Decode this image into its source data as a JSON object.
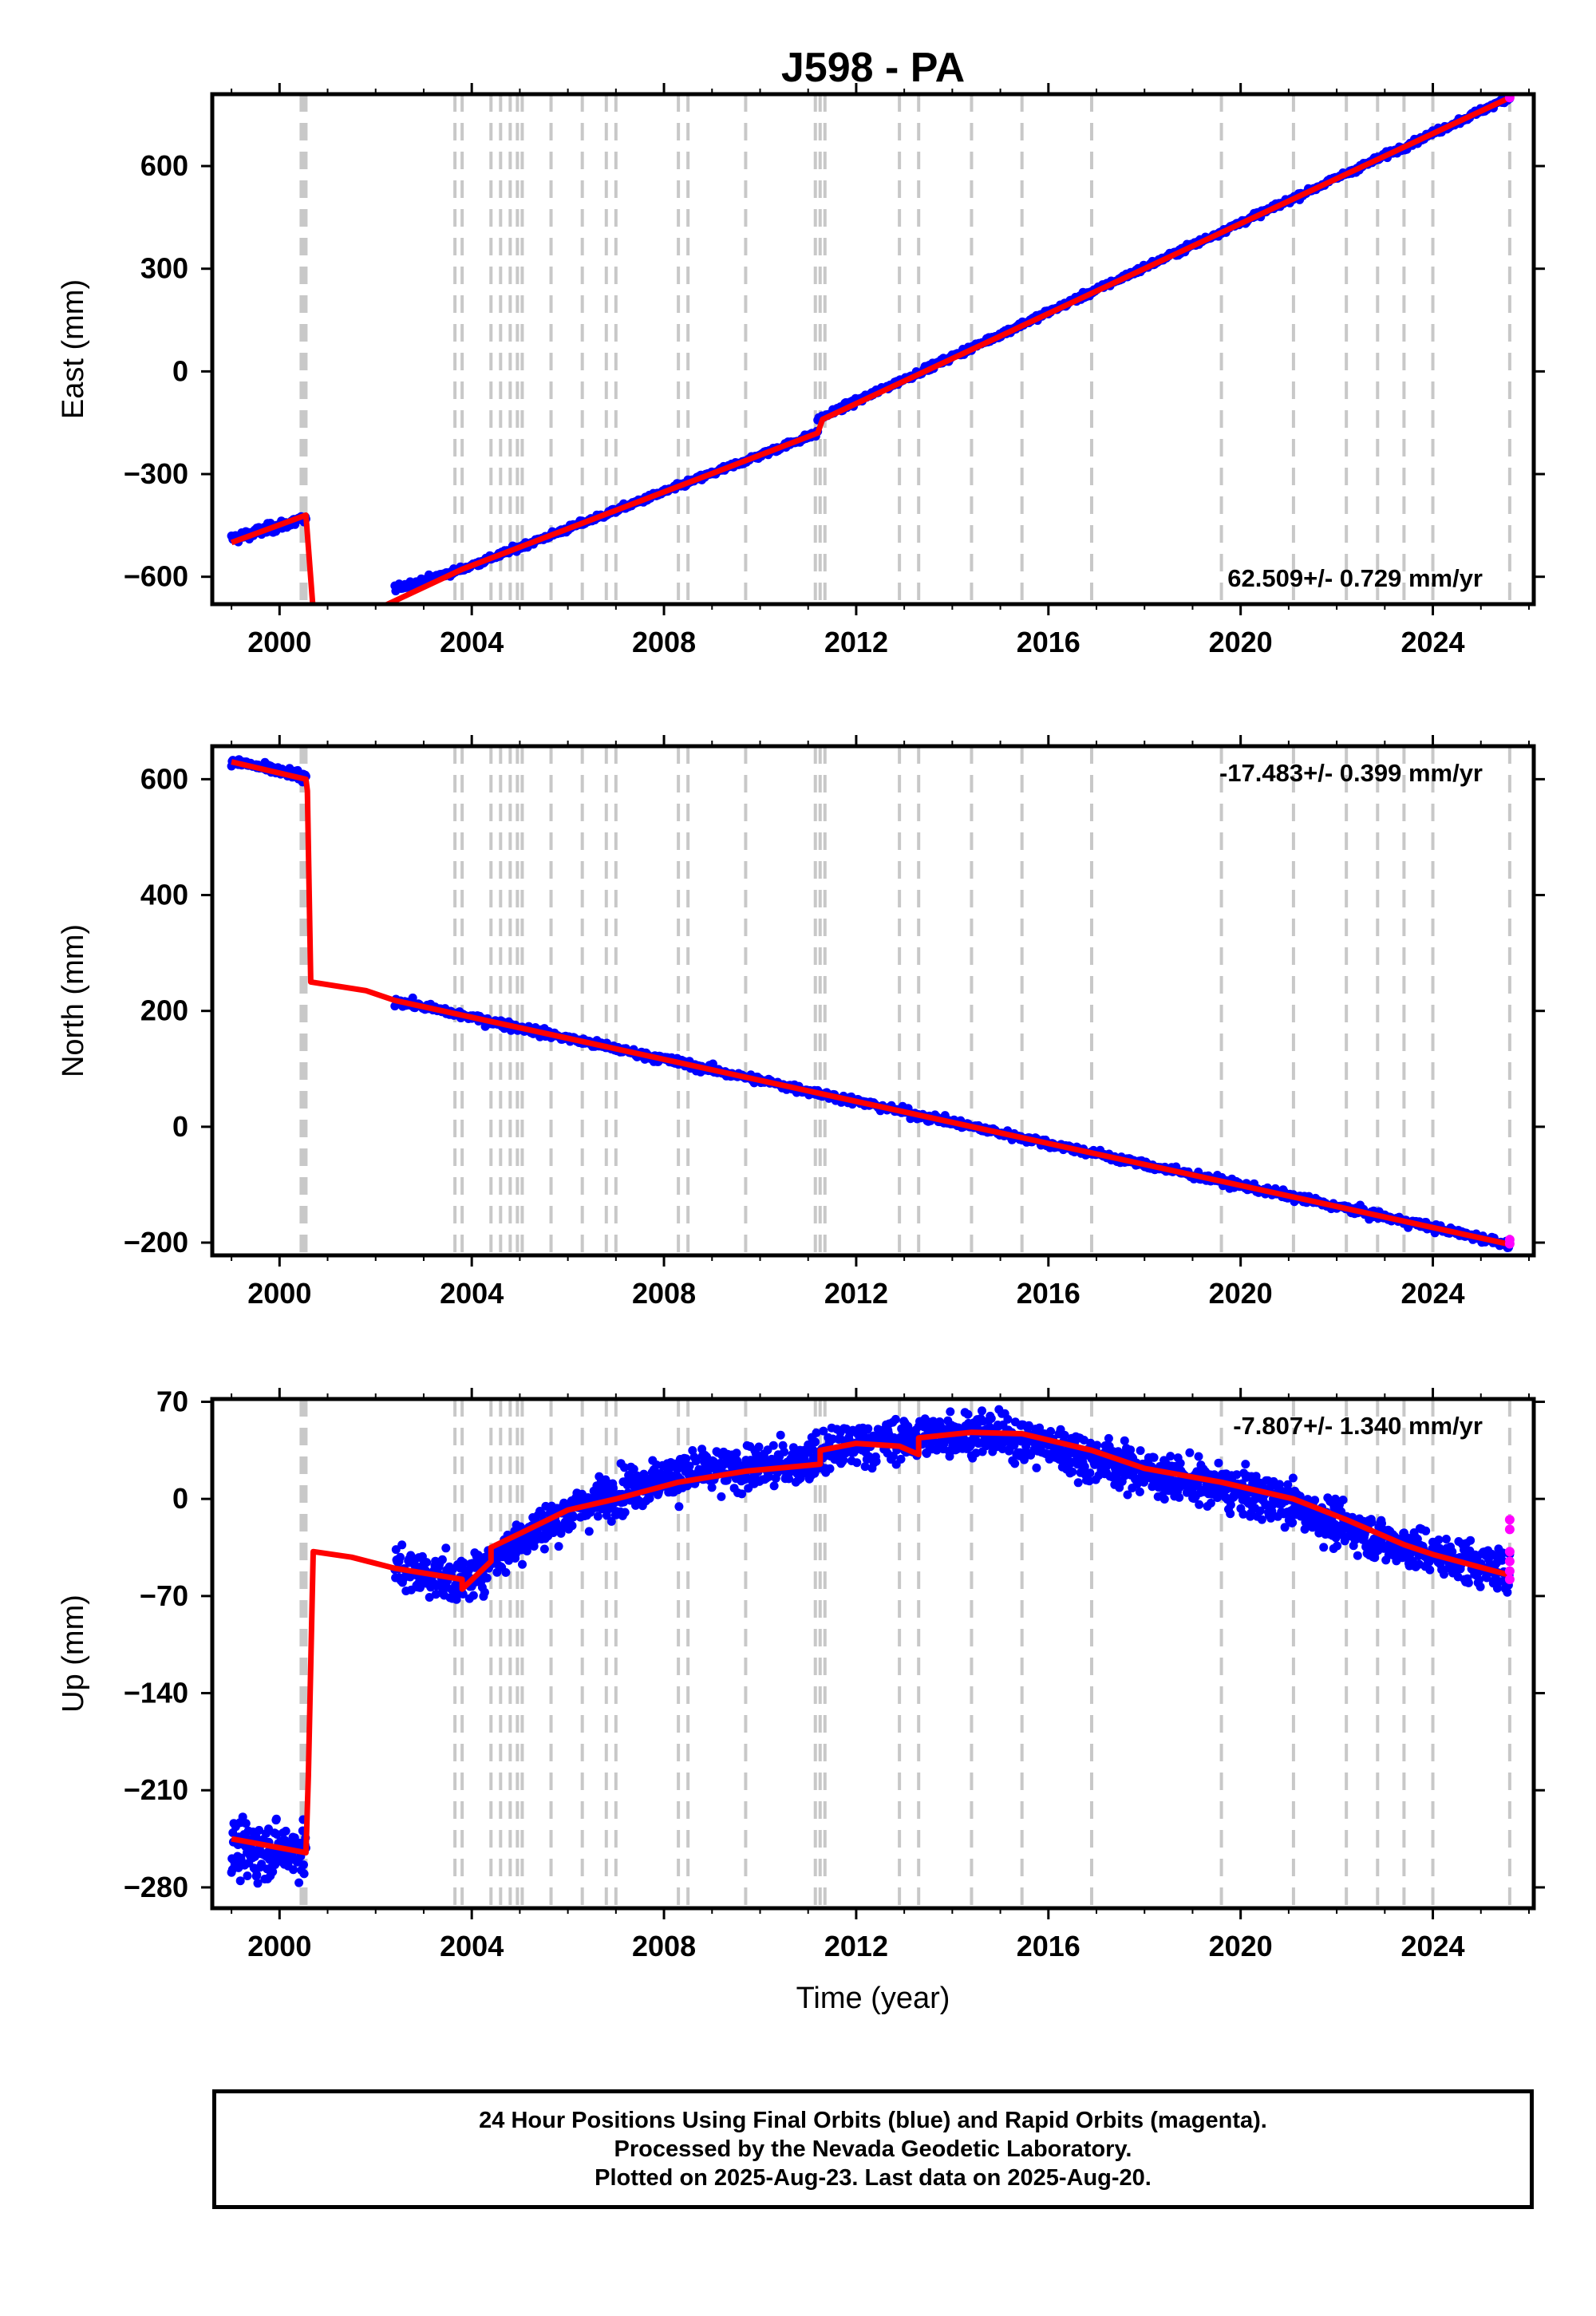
{
  "title": "J598 - PA",
  "colors": {
    "final_orbits": "#0000ff",
    "rapid_orbits": "#ff00ff",
    "model": "#ff0000",
    "steps": "#c8c8c8"
  },
  "step_years": [
    2000.45,
    2000.5,
    2000.55,
    2003.65,
    2003.8,
    2004.4,
    2004.6,
    2004.8,
    2004.95,
    2005.05,
    2005.65,
    2006.3,
    2006.8,
    2007.0,
    2008.3,
    2008.5,
    2009.7,
    2011.15,
    2011.25,
    2011.35,
    2012.9,
    2013.3,
    2014.4,
    2015.45,
    2016.9,
    2019.6,
    2021.1,
    2022.2,
    2022.85,
    2023.4,
    2024.0,
    2025.6
  ],
  "caption": {
    "line1": "24 Hour Positions Using Final Orbits (blue) and Rapid Orbits (magenta).",
    "line2": "Processed by the Nevada Geodetic Laboratory.",
    "line3": "Plotted on 2025-Aug-23. Last data on 2025-Aug-20."
  },
  "chart_data": [
    {
      "type": "scatter",
      "component": "East",
      "ylabel": "East (mm)",
      "xlabel": "",
      "xlim": [
        1998.6,
        2026.1
      ],
      "ylim": [
        -680,
        810
      ],
      "xticks": [
        2000,
        2004,
        2008,
        2012,
        2016,
        2020,
        2024
      ],
      "xtick_labels": [
        "2000",
        "2004",
        "2008",
        "2012",
        "2016",
        "2020",
        "2024"
      ],
      "yticks": [
        -600,
        -300,
        0,
        300,
        600
      ],
      "ytick_labels": [
        "−600",
        "−300",
        "0",
        "300",
        "600"
      ],
      "rate_label": "62.509+/- 0.729 mm/yr",
      "rate_position": "bottom-right",
      "segments": [
        {
          "x0": 1999.0,
          "x1": 2000.55,
          "y0": -490,
          "y1": -430,
          "noise": 10,
          "n": 110
        },
        {
          "x0": 2002.4,
          "x1": 2003.8,
          "y0": -635,
          "y1": -578,
          "noise": 6,
          "n": 80
        },
        {
          "x0": 2003.8,
          "x1": 2011.2,
          "y0": -578,
          "y1": -180,
          "noise": 6,
          "n": 360
        },
        {
          "x0": 2011.2,
          "x1": 2025.6,
          "y0": -140,
          "y1": 800,
          "noise": 6,
          "n": 640
        }
      ],
      "rapid_points": [
        {
          "x": 2025.6,
          "y": 800
        }
      ],
      "model": {
        "x": [
          1999.0,
          2000.55,
          2000.55,
          2000.7,
          2002.1,
          2003.8,
          2011.2,
          2011.3,
          2025.6
        ],
        "y": [
          -500,
          -420,
          -420,
          -700,
          -690,
          -578,
          -180,
          -140,
          800
        ]
      }
    },
    {
      "type": "scatter",
      "component": "North",
      "ylabel": "North (mm)",
      "xlabel": "",
      "xlim": [
        1998.6,
        2026.1
      ],
      "ylim": [
        -222,
        657
      ],
      "xticks": [
        2000,
        2004,
        2008,
        2012,
        2016,
        2020,
        2024
      ],
      "xtick_labels": [
        "2000",
        "2004",
        "2008",
        "2012",
        "2016",
        "2020",
        "2024"
      ],
      "yticks": [
        -200,
        0,
        200,
        400,
        600
      ],
      "ytick_labels": [
        "−200",
        "0",
        "200",
        "400",
        "600"
      ],
      "rate_label": "-17.483+/- 0.399 mm/yr",
      "rate_position": "top-right",
      "segments": [
        {
          "x0": 1999.0,
          "x1": 2000.55,
          "y0": 632,
          "y1": 603,
          "noise": 5,
          "n": 110
        },
        {
          "x0": 2002.4,
          "x1": 2025.6,
          "y0": 218,
          "y1": -203,
          "noise": 5,
          "n": 1000
        }
      ],
      "rapid_points": [
        {
          "x": 2025.6,
          "y": -195
        },
        {
          "x": 2025.6,
          "y": -202
        }
      ],
      "model": {
        "x": [
          1999.0,
          2000.55,
          2000.58,
          2000.65,
          2001.8,
          2002.4,
          2025.6
        ],
        "y": [
          630,
          600,
          580,
          250,
          235,
          218,
          -203
        ]
      }
    },
    {
      "type": "scatter",
      "component": "Up",
      "ylabel": "Up (mm)",
      "xlabel": "Time (year)",
      "xlim": [
        1998.6,
        2026.1
      ],
      "ylim": [
        -295,
        72
      ],
      "xticks": [
        2000,
        2004,
        2008,
        2012,
        2016,
        2020,
        2024
      ],
      "xtick_labels": [
        "2000",
        "2004",
        "2008",
        "2012",
        "2016",
        "2020",
        "2024"
      ],
      "yticks": [
        -280,
        -210,
        -140,
        -70,
        0,
        70
      ],
      "ytick_labels": [
        "−280",
        "−210",
        "−140",
        "−70",
        "0",
        "70"
      ],
      "rate_label": "-7.807+/- 1.340 mm/yr",
      "rate_position": "top-right",
      "segments": [
        {
          "x0": 1999.0,
          "x1": 2000.55,
          "y0": -255,
          "y1": -252,
          "noise": 14,
          "n": 160
        },
        {
          "x0": 2002.4,
          "x1": 2025.6,
          "y0": -50,
          "y1": -50,
          "noise": 11,
          "n": 1900,
          "curve": true
        }
      ],
      "rapid_points": [
        {
          "x": 2025.6,
          "y": -15
        },
        {
          "x": 2025.6,
          "y": -22
        },
        {
          "x": 2025.6,
          "y": -38
        },
        {
          "x": 2025.6,
          "y": -45
        },
        {
          "x": 2025.6,
          "y": -52
        },
        {
          "x": 2025.6,
          "y": -58
        }
      ],
      "model": {
        "x": [
          1999.0,
          2000.55,
          2000.6,
          2000.7,
          2001.5,
          2002.4,
          2003.8,
          2003.8,
          2004.4,
          2004.4,
          2005.0,
          2006.0,
          2007.0,
          2008.3,
          2009.7,
          2011.25,
          2011.25,
          2012.0,
          2012.9,
          2013.3,
          2013.3,
          2014.4,
          2015.45,
          2016.9,
          2018.0,
          2019.6,
          2021.1,
          2022.2,
          2023.4,
          2024.0,
          2025.6
        ],
        "y": [
          -245,
          -255,
          -200,
          -38,
          -42,
          -50,
          -58,
          -65,
          -45,
          -35,
          -25,
          -8,
          0,
          12,
          20,
          25,
          35,
          40,
          38,
          32,
          44,
          48,
          47,
          35,
          22,
          12,
          0,
          -15,
          -33,
          -40,
          -55
        ]
      },
      "up_curve": {
        "x": [
          2002.4,
          2003.8,
          2005.0,
          2006.0,
          2007.0,
          2008.0,
          2009.0,
          2010.0,
          2011.0,
          2012.0,
          2013.0,
          2014.0,
          2015.0,
          2016.0,
          2017.0,
          2018.0,
          2019.0,
          2020.0,
          2021.0,
          2022.0,
          2023.0,
          2024.0,
          2025.6
        ],
        "y": [
          -50,
          -60,
          -30,
          -10,
          5,
          15,
          20,
          22,
          28,
          40,
          42,
          48,
          46,
          38,
          28,
          20,
          12,
          5,
          -3,
          -18,
          -30,
          -40,
          -52
        ]
      }
    }
  ]
}
